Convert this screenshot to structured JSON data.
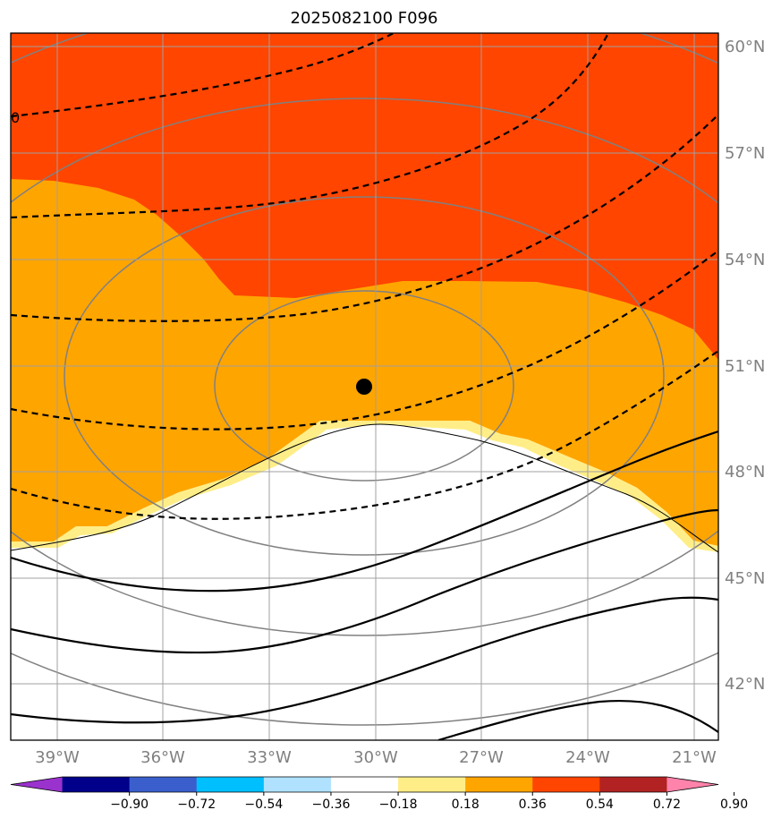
{
  "title": "2025082100 F096",
  "map": {
    "lat_labels": [
      "60°N",
      "57°N",
      "54°N",
      "51°N",
      "48°N",
      "45°N",
      "42°N"
    ],
    "lon_labels": [
      "39°W",
      "36°W",
      "33°W",
      "30°W",
      "27°W",
      "24°W",
      "21°W"
    ],
    "graticule_color": "#808080",
    "marker_color": "#000000",
    "fill_colors": {
      "0.18_to_0.36": "#ffee88",
      "0.36_to_0.54": "#ffa500",
      "0.54_to_0.72": "#ff4500"
    },
    "contour_label_fragment": "0"
  },
  "colorbar": {
    "colors": [
      "#9a32cd",
      "#00008b",
      "#3a5fcd",
      "#00bfff",
      "#b0e2ff",
      "#ffffff",
      "#ffee88",
      "#ffa500",
      "#ff4500",
      "#b22222",
      "#ff83aa"
    ],
    "tick_labels": [
      "−0.90",
      "−0.72",
      "−0.54",
      "−0.36",
      "−0.18",
      "0.18",
      "0.36",
      "0.54",
      "0.72",
      "0.90"
    ]
  }
}
